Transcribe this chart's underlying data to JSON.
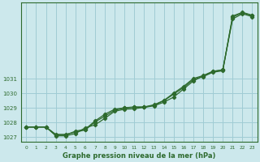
{
  "xlabel": "Graphe pression niveau de la mer (hPa)",
  "xlim": [
    -0.5,
    23.5
  ],
  "ylim": [
    1026.7,
    1036.2
  ],
  "yticks": [
    1027,
    1028,
    1029,
    1030,
    1031
  ],
  "xticks": [
    0,
    1,
    2,
    3,
    4,
    5,
    6,
    7,
    8,
    9,
    10,
    11,
    12,
    13,
    14,
    15,
    16,
    17,
    18,
    19,
    20,
    21,
    22,
    23
  ],
  "bg_color": "#cce8ec",
  "grid_color": "#a0ccd4",
  "line_color": "#2d6a2d",
  "series": [
    [
      1027.7,
      1027.7,
      1027.7,
      1027.2,
      1027.2,
      1027.35,
      1027.5,
      1028.05,
      1028.45,
      1028.85,
      1029.0,
      1029.05,
      1029.05,
      1029.2,
      1029.5,
      1029.95,
      1030.4,
      1030.95,
      1031.15,
      1031.45,
      1031.55,
      1035.3,
      1035.55,
      1035.35
    ],
    [
      1027.7,
      1027.7,
      1027.7,
      1027.1,
      1027.1,
      1027.25,
      1027.65,
      1027.85,
      1028.3,
      1028.78,
      1028.92,
      1028.95,
      1029.05,
      1029.15,
      1029.4,
      1029.75,
      1030.3,
      1030.85,
      1031.2,
      1031.5,
      1031.6,
      1035.1,
      1035.45,
      1035.25
    ],
    [
      1027.7,
      1027.7,
      1027.7,
      1027.15,
      1027.15,
      1027.42,
      1027.55,
      1028.12,
      1028.58,
      1028.92,
      1029.02,
      1029.08,
      1029.08,
      1029.22,
      1029.52,
      1030.02,
      1030.48,
      1031.02,
      1031.22,
      1031.52,
      1031.62,
      1035.22,
      1035.52,
      1035.32
    ]
  ]
}
